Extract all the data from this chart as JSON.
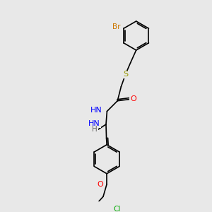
{
  "background_color": "#e8e8e8",
  "bond_color": "#000000",
  "bond_width": 1.2,
  "figsize": [
    3.0,
    3.0
  ],
  "dpi": 100,
  "colors": {
    "Br": "#cc7700",
    "S": "#999900",
    "O": "#ff0000",
    "N": "#0000ff",
    "Cl": "#00aa00",
    "H": "#666666",
    "C": "#000000"
  }
}
